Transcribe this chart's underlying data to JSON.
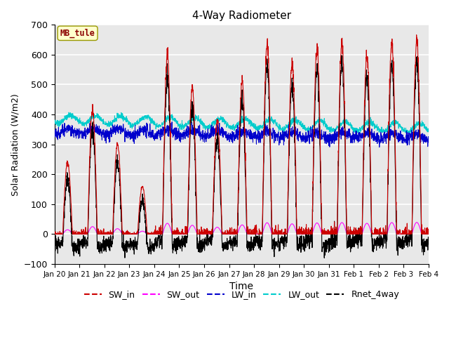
{
  "title": "4-Way Radiometer",
  "xlabel": "Time",
  "ylabel": "Solar Radiation (W/m2)",
  "ylim": [
    -100,
    700
  ],
  "yticks": [
    -100,
    0,
    100,
    200,
    300,
    400,
    500,
    600,
    700
  ],
  "annotation_text": "MB_tule",
  "annotation_color": "#8B0000",
  "annotation_bg": "#FFFFCC",
  "legend_entries": [
    "SW_in",
    "SW_out",
    "LW_in",
    "LW_out",
    "Rnet_4way"
  ],
  "line_colors": {
    "SW_in": "#CC0000",
    "SW_out": "#FF00FF",
    "LW_in": "#0000CC",
    "LW_out": "#00CCCC",
    "Rnet_4way": "#000000"
  },
  "x_tick_labels": [
    "Jan 20",
    "Jan 21",
    "Jan 22",
    "Jan 23",
    "Jan 24",
    "Jan 25",
    "Jan 26",
    "Jan 27",
    "Jan 28",
    "Jan 29",
    "Jan 30",
    "Jan 31",
    "Feb 1",
    "Feb 2",
    "Feb 3",
    "Feb 4"
  ],
  "background_color": "#E8E8E8",
  "sw_amps": [
    240,
    415,
    300,
    160,
    600,
    490,
    380,
    510,
    630,
    570,
    620,
    640,
    600,
    640,
    650
  ],
  "lw_in_base": 340,
  "lw_out_base": 375,
  "night_rnet": -50
}
